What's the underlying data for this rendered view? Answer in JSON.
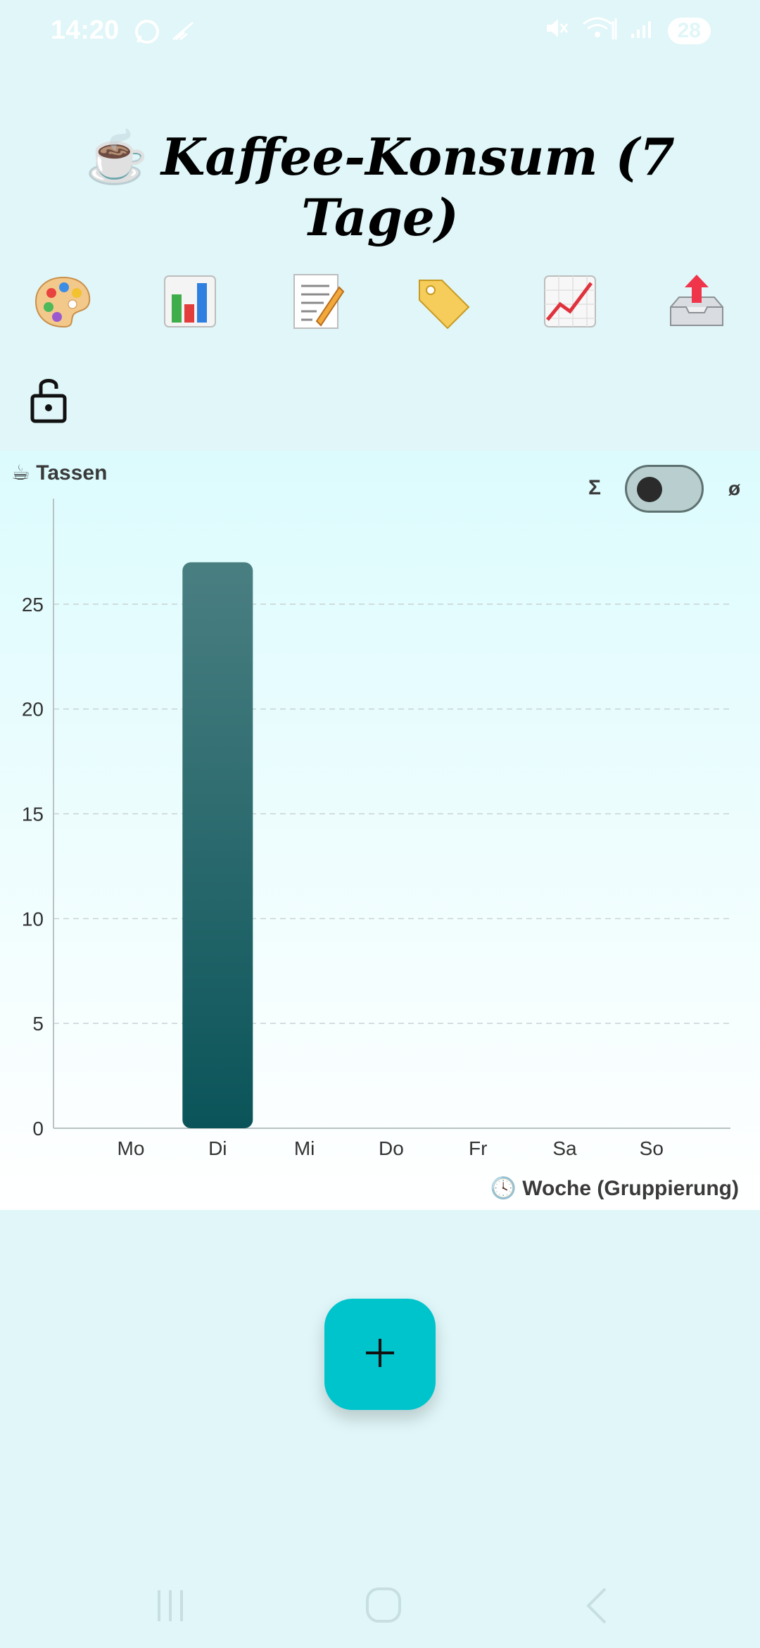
{
  "status_bar": {
    "time": "14:20",
    "battery": "28",
    "icons": [
      "whatsapp-icon",
      "signal-off-icon",
      "mute-icon",
      "wifi-icon",
      "signal-icon",
      "battery-icon"
    ]
  },
  "header": {
    "title_icon": "☕",
    "title": "Kaffee-Konsum (7 Tage)"
  },
  "toolbar": {
    "buttons": [
      "palette-icon",
      "bar-chart-icon",
      "memo-icon",
      "tag-icon",
      "trend-chart-icon",
      "outbox-icon"
    ],
    "lock_icon": "unlock-icon"
  },
  "chart": {
    "y_title_icon": "☕",
    "y_title": "Tassen",
    "toggle_left": "Σ",
    "toggle_right": "ø",
    "x_title_icon": "🕓",
    "x_title": "Woche (Gruppierung)"
  },
  "chart_data": {
    "type": "bar",
    "categories": [
      "Mo",
      "Di",
      "Mi",
      "Do",
      "Fr",
      "Sa",
      "So"
    ],
    "values": [
      0,
      27,
      0,
      0,
      0,
      0,
      0
    ],
    "title": "",
    "xlabel": "Woche (Gruppierung)",
    "ylabel": "Tassen",
    "ylim": [
      0,
      29.7
    ],
    "yticks": [
      0,
      5,
      10,
      15,
      20,
      25
    ],
    "grid": true,
    "bar_color_top": "#4a7f82",
    "bar_color_bottom": "#0a5459"
  },
  "fab": {
    "label": "+"
  },
  "colors": {
    "background": "#e0f6f8",
    "accent": "#00c4cc",
    "bar": "#1d6569"
  },
  "nav": [
    "recent-apps-icon",
    "home-icon",
    "back-icon"
  ]
}
